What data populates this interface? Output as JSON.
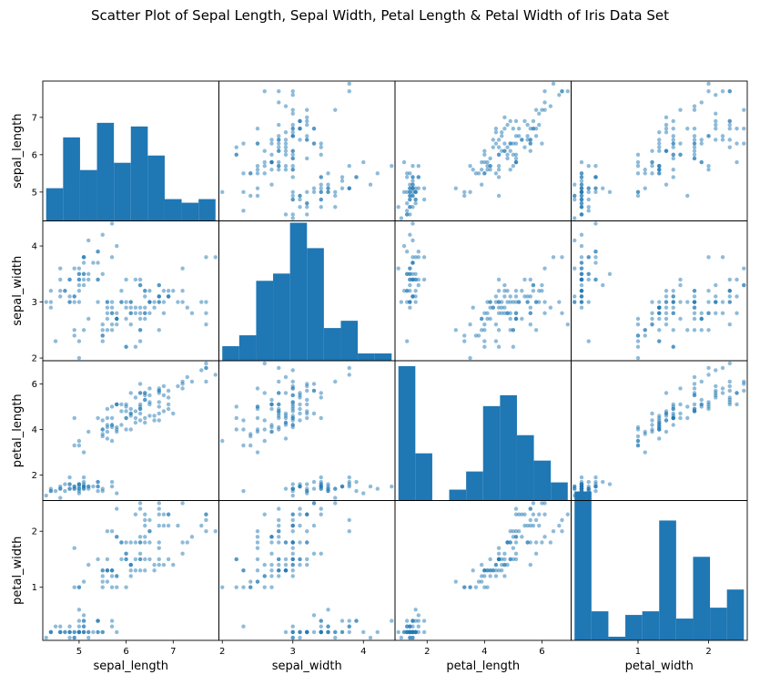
{
  "title": "Scatter Plot of Sepal Length, Sepal Width, Petal Length & Petal Width of Iris Data Set",
  "colors": {
    "points": "#1f77b4",
    "bars": "#1f77b4",
    "frame": "#000000"
  },
  "chart_data": {
    "type": "scatter",
    "variables": [
      "sepal_length",
      "sepal_width",
      "petal_length",
      "petal_width"
    ],
    "ticks": {
      "sepal_length": [
        5,
        6,
        7
      ],
      "sepal_width": [
        2,
        3,
        4
      ],
      "petal_length": [
        2,
        4,
        6
      ],
      "petal_width": [
        1,
        2
      ]
    },
    "tick_labels": {
      "sepal_length": [
        "5",
        "6",
        "7"
      ],
      "sepal_width": [
        "2",
        "3",
        "4"
      ],
      "petal_length": [
        "2",
        "4",
        "6"
      ],
      "petal_width": [
        "1",
        "2"
      ]
    },
    "ranges": {
      "sepal_length": [
        4.3,
        7.9
      ],
      "sepal_width": [
        2.0,
        4.4
      ],
      "petal_length": [
        1.0,
        6.9
      ],
      "petal_width": [
        0.1,
        2.5
      ]
    },
    "histograms": {
      "sepal_length": [
        9,
        23,
        14,
        27,
        16,
        26,
        18,
        6,
        5,
        6
      ],
      "sepal_width": [
        4,
        7,
        22,
        24,
        38,
        31,
        9,
        11,
        2,
        2
      ],
      "petal_length": [
        37,
        13,
        0,
        3,
        8,
        26,
        29,
        18,
        11,
        5
      ],
      "petal_width": [
        41,
        8,
        1,
        7,
        8,
        33,
        6,
        23,
        9,
        14
      ]
    },
    "hist_ylim": [
      0,
      38.5
    ],
    "grid": false,
    "legend": "none",
    "iris": [
      [
        5.1,
        3.5,
        1.4,
        0.2
      ],
      [
        4.9,
        3.0,
        1.4,
        0.2
      ],
      [
        4.7,
        3.2,
        1.3,
        0.2
      ],
      [
        4.6,
        3.1,
        1.5,
        0.2
      ],
      [
        5.0,
        3.6,
        1.4,
        0.2
      ],
      [
        5.4,
        3.9,
        1.7,
        0.4
      ],
      [
        4.6,
        3.4,
        1.4,
        0.3
      ],
      [
        5.0,
        3.4,
        1.5,
        0.2
      ],
      [
        4.4,
        2.9,
        1.4,
        0.2
      ],
      [
        4.9,
        3.1,
        1.5,
        0.1
      ],
      [
        5.4,
        3.7,
        1.5,
        0.2
      ],
      [
        4.8,
        3.4,
        1.6,
        0.2
      ],
      [
        4.8,
        3.0,
        1.4,
        0.1
      ],
      [
        4.3,
        3.0,
        1.1,
        0.1
      ],
      [
        5.8,
        4.0,
        1.2,
        0.2
      ],
      [
        5.7,
        4.4,
        1.5,
        0.4
      ],
      [
        5.4,
        3.9,
        1.3,
        0.4
      ],
      [
        5.1,
        3.5,
        1.4,
        0.3
      ],
      [
        5.7,
        3.8,
        1.7,
        0.3
      ],
      [
        5.1,
        3.8,
        1.5,
        0.3
      ],
      [
        5.4,
        3.4,
        1.7,
        0.2
      ],
      [
        5.1,
        3.7,
        1.5,
        0.4
      ],
      [
        4.6,
        3.6,
        1.0,
        0.2
      ],
      [
        5.1,
        3.3,
        1.7,
        0.5
      ],
      [
        4.8,
        3.4,
        1.9,
        0.2
      ],
      [
        5.0,
        3.0,
        1.6,
        0.2
      ],
      [
        5.0,
        3.4,
        1.6,
        0.4
      ],
      [
        5.2,
        3.5,
        1.5,
        0.2
      ],
      [
        5.2,
        3.4,
        1.4,
        0.2
      ],
      [
        4.7,
        3.2,
        1.6,
        0.2
      ],
      [
        4.8,
        3.1,
        1.6,
        0.2
      ],
      [
        5.4,
        3.4,
        1.5,
        0.4
      ],
      [
        5.2,
        4.1,
        1.5,
        0.1
      ],
      [
        5.5,
        4.2,
        1.4,
        0.2
      ],
      [
        4.9,
        3.1,
        1.5,
        0.2
      ],
      [
        5.0,
        3.2,
        1.2,
        0.2
      ],
      [
        5.5,
        3.5,
        1.3,
        0.2
      ],
      [
        4.9,
        3.6,
        1.4,
        0.1
      ],
      [
        4.4,
        3.0,
        1.3,
        0.2
      ],
      [
        5.1,
        3.4,
        1.5,
        0.2
      ],
      [
        5.0,
        3.5,
        1.3,
        0.3
      ],
      [
        4.5,
        2.3,
        1.3,
        0.3
      ],
      [
        4.4,
        3.2,
        1.3,
        0.2
      ],
      [
        5.0,
        3.5,
        1.6,
        0.6
      ],
      [
        5.1,
        3.8,
        1.9,
        0.4
      ],
      [
        4.8,
        3.0,
        1.4,
        0.3
      ],
      [
        5.1,
        3.8,
        1.6,
        0.2
      ],
      [
        4.6,
        3.2,
        1.4,
        0.2
      ],
      [
        5.3,
        3.7,
        1.5,
        0.2
      ],
      [
        5.0,
        3.3,
        1.4,
        0.2
      ],
      [
        7.0,
        3.2,
        4.7,
        1.4
      ],
      [
        6.4,
        3.2,
        4.5,
        1.5
      ],
      [
        6.9,
        3.1,
        4.9,
        1.5
      ],
      [
        5.5,
        2.3,
        4.0,
        1.3
      ],
      [
        6.5,
        2.8,
        4.6,
        1.5
      ],
      [
        5.7,
        2.8,
        4.5,
        1.3
      ],
      [
        6.3,
        3.3,
        4.7,
        1.6
      ],
      [
        4.9,
        2.4,
        3.3,
        1.0
      ],
      [
        6.6,
        2.9,
        4.6,
        1.3
      ],
      [
        5.2,
        2.7,
        3.9,
        1.4
      ],
      [
        5.0,
        2.0,
        3.5,
        1.0
      ],
      [
        5.9,
        3.0,
        4.2,
        1.5
      ],
      [
        6.0,
        2.2,
        4.0,
        1.0
      ],
      [
        6.1,
        2.9,
        4.7,
        1.4
      ],
      [
        5.6,
        2.9,
        3.6,
        1.3
      ],
      [
        6.7,
        3.1,
        4.4,
        1.4
      ],
      [
        5.6,
        3.0,
        4.5,
        1.5
      ],
      [
        5.8,
        2.7,
        4.1,
        1.0
      ],
      [
        6.2,
        2.2,
        4.5,
        1.5
      ],
      [
        5.6,
        2.5,
        3.9,
        1.1
      ],
      [
        5.9,
        3.2,
        4.8,
        1.8
      ],
      [
        6.1,
        2.8,
        4.0,
        1.3
      ],
      [
        6.3,
        2.5,
        4.9,
        1.5
      ],
      [
        6.1,
        2.8,
        4.7,
        1.2
      ],
      [
        6.4,
        2.9,
        4.3,
        1.3
      ],
      [
        6.6,
        3.0,
        4.4,
        1.4
      ],
      [
        6.8,
        2.8,
        4.8,
        1.4
      ],
      [
        6.7,
        3.0,
        5.0,
        1.7
      ],
      [
        6.0,
        2.9,
        4.5,
        1.5
      ],
      [
        5.7,
        2.6,
        3.5,
        1.0
      ],
      [
        5.5,
        2.4,
        3.8,
        1.1
      ],
      [
        5.5,
        2.4,
        3.7,
        1.0
      ],
      [
        5.8,
        2.7,
        3.9,
        1.2
      ],
      [
        6.0,
        2.7,
        5.1,
        1.6
      ],
      [
        5.4,
        3.0,
        4.5,
        1.5
      ],
      [
        6.0,
        3.4,
        4.5,
        1.6
      ],
      [
        6.7,
        3.1,
        4.7,
        1.5
      ],
      [
        6.3,
        2.3,
        4.4,
        1.3
      ],
      [
        5.6,
        3.0,
        4.1,
        1.3
      ],
      [
        5.5,
        2.5,
        4.0,
        1.3
      ],
      [
        5.5,
        2.6,
        4.4,
        1.2
      ],
      [
        6.1,
        3.0,
        4.6,
        1.4
      ],
      [
        5.8,
        2.6,
        4.0,
        1.2
      ],
      [
        5.0,
        2.3,
        3.3,
        1.0
      ],
      [
        5.6,
        2.7,
        4.2,
        1.3
      ],
      [
        5.7,
        3.0,
        4.2,
        1.2
      ],
      [
        5.7,
        2.9,
        4.2,
        1.3
      ],
      [
        6.2,
        2.9,
        4.3,
        1.3
      ],
      [
        5.1,
        2.5,
        3.0,
        1.1
      ],
      [
        5.7,
        2.8,
        4.1,
        1.3
      ],
      [
        6.3,
        3.3,
        6.0,
        2.5
      ],
      [
        5.8,
        2.7,
        5.1,
        1.9
      ],
      [
        7.1,
        3.0,
        5.9,
        2.1
      ],
      [
        6.3,
        2.9,
        5.6,
        1.8
      ],
      [
        6.5,
        3.0,
        5.8,
        2.2
      ],
      [
        7.6,
        3.0,
        6.6,
        2.1
      ],
      [
        4.9,
        2.5,
        4.5,
        1.7
      ],
      [
        7.3,
        2.9,
        6.3,
        1.8
      ],
      [
        6.7,
        2.5,
        5.8,
        1.8
      ],
      [
        7.2,
        3.6,
        6.1,
        2.5
      ],
      [
        6.5,
        3.2,
        5.1,
        2.0
      ],
      [
        6.4,
        2.7,
        5.3,
        1.9
      ],
      [
        6.8,
        3.0,
        5.5,
        2.1
      ],
      [
        5.7,
        2.5,
        5.0,
        2.0
      ],
      [
        5.8,
        2.8,
        5.1,
        2.4
      ],
      [
        6.4,
        3.2,
        5.3,
        2.3
      ],
      [
        6.5,
        3.0,
        5.5,
        1.8
      ],
      [
        7.7,
        3.8,
        6.7,
        2.2
      ],
      [
        7.7,
        2.6,
        6.9,
        2.3
      ],
      [
        6.0,
        2.2,
        5.0,
        1.5
      ],
      [
        6.9,
        3.2,
        5.7,
        2.3
      ],
      [
        5.6,
        2.8,
        4.9,
        2.0
      ],
      [
        7.7,
        2.8,
        6.7,
        2.0
      ],
      [
        6.3,
        2.7,
        4.9,
        1.8
      ],
      [
        6.7,
        3.3,
        5.7,
        2.1
      ],
      [
        7.2,
        3.2,
        6.0,
        1.8
      ],
      [
        6.2,
        2.8,
        4.8,
        1.8
      ],
      [
        6.1,
        3.0,
        4.9,
        1.8
      ],
      [
        6.4,
        2.8,
        5.6,
        2.1
      ],
      [
        7.2,
        3.0,
        5.8,
        1.6
      ],
      [
        7.4,
        2.8,
        6.1,
        1.9
      ],
      [
        7.9,
        3.8,
        6.4,
        2.0
      ],
      [
        6.4,
        2.8,
        5.6,
        2.2
      ],
      [
        6.3,
        2.8,
        5.1,
        1.5
      ],
      [
        6.1,
        2.6,
        5.6,
        1.4
      ],
      [
        7.7,
        3.0,
        6.1,
        2.3
      ],
      [
        6.3,
        3.4,
        5.6,
        2.4
      ],
      [
        6.4,
        3.1,
        5.5,
        1.8
      ],
      [
        6.0,
        3.0,
        4.8,
        1.8
      ],
      [
        6.9,
        3.1,
        5.4,
        2.1
      ],
      [
        6.7,
        3.1,
        5.6,
        2.4
      ],
      [
        6.9,
        3.1,
        5.1,
        2.3
      ],
      [
        5.8,
        2.7,
        5.1,
        1.9
      ],
      [
        6.8,
        3.2,
        5.9,
        2.3
      ],
      [
        6.7,
        3.3,
        5.7,
        2.5
      ],
      [
        6.7,
        3.0,
        5.2,
        2.3
      ],
      [
        6.3,
        2.5,
        5.0,
        1.9
      ],
      [
        6.5,
        3.0,
        5.2,
        2.0
      ],
      [
        6.2,
        3.4,
        5.4,
        2.3
      ],
      [
        5.9,
        3.0,
        5.1,
        1.8
      ]
    ]
  }
}
